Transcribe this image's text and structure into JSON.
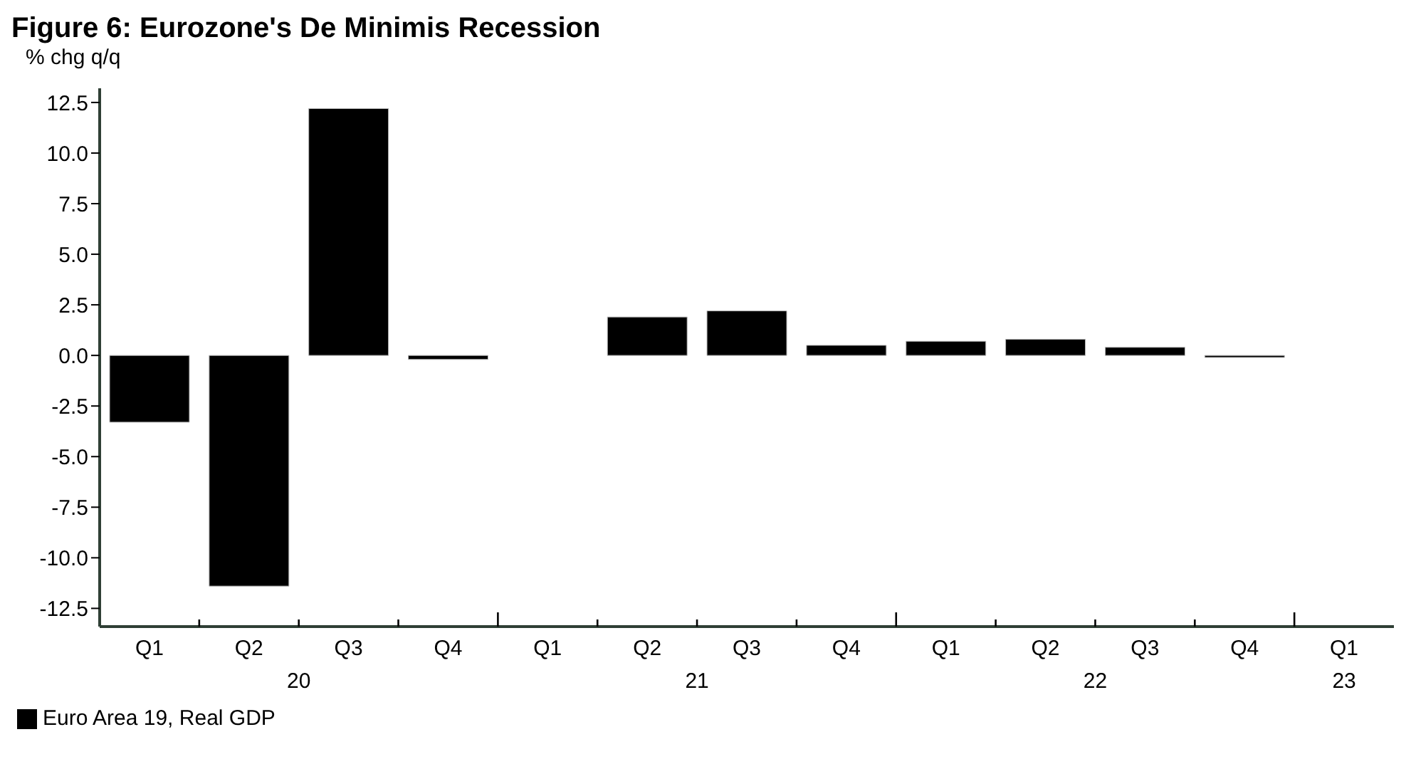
{
  "chart_data": {
    "type": "bar",
    "title": "Figure 6: Eurozone's De Minimis Recession",
    "ylabel": "% chg q/q",
    "categories": [
      "Q1",
      "Q2",
      "Q3",
      "Q4",
      "Q1",
      "Q2",
      "Q3",
      "Q4",
      "Q1",
      "Q2",
      "Q3",
      "Q4",
      "Q1"
    ],
    "annotations": [
      "20",
      "21",
      "22",
      "23"
    ],
    "series": [
      {
        "name": "Euro Area 19, Real GDP",
        "color": "#000000",
        "values": [
          -3.3,
          -11.4,
          12.2,
          -0.2,
          0.0,
          1.9,
          2.2,
          0.5,
          0.7,
          0.8,
          0.4,
          -0.1,
          0.0
        ]
      }
    ],
    "ylim": [
      -13.4,
      13.2
    ],
    "yticks": [
      -12.5,
      {
        "value": -10,
        "label": "-10.0"
      },
      -7.5,
      {
        "value": -5,
        "label": "-5.0"
      },
      -2.5,
      {
        "value": 0,
        "label": "0.0"
      },
      2.5,
      {
        "value": 5,
        "label": "5.0"
      },
      7.5,
      {
        "value": 10,
        "label": "10.0"
      },
      12.5
    ],
    "grid": false,
    "legend": "bottom left"
  }
}
